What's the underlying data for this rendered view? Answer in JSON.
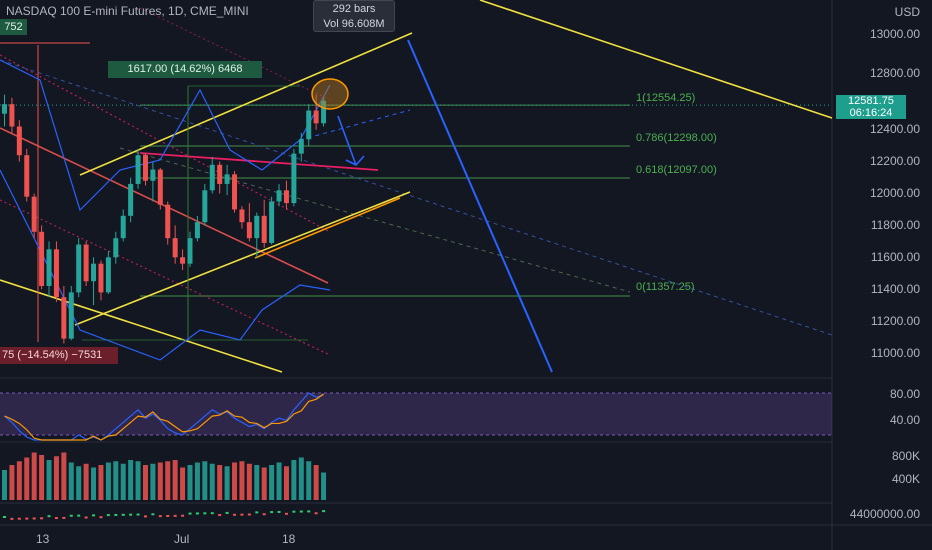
{
  "header": {
    "symbol_title": "NASDAQ 100 E-mini Futures, 1D, CME_MINI"
  },
  "tooltip": {
    "bars": "292 bars",
    "vol": "Vol 96.608M"
  },
  "price_axis": {
    "currency": "USD",
    "labels": [
      "13000.00",
      "12800.00",
      "12400.00",
      "12200.00",
      "12000.00",
      "11800.00",
      "11600.00",
      "11400.00",
      "11200.00",
      "11000.00"
    ],
    "current_price": "12581.75",
    "countdown": "06:16:24"
  },
  "indicator_axis": {
    "rsi_labels": [
      "80.00",
      "40.00"
    ],
    "volume_labels": [
      "800K",
      "400K"
    ],
    "obv_label": "44000000.00"
  },
  "time_axis": {
    "labels": [
      "13",
      "Jul",
      "18"
    ]
  },
  "annotations": {
    "measure_up": "1617.00 (14.62%) 6468",
    "measure_down": "75 (−14.54%) −7531",
    "partial_label": "752"
  },
  "fib_levels": [
    {
      "label": "1(12554.25)",
      "price": 12554.25
    },
    {
      "label": "0.786(12298.00)",
      "price": 12298.0
    },
    {
      "label": "0.618(12097.00)",
      "price": 12097.0
    },
    {
      "label": "0(11357.25)",
      "price": 11357.25
    }
  ],
  "colors": {
    "up": "#26a69a",
    "down": "#ef5350",
    "channel_yellow": "#f0e040",
    "trend_blue": "#2962ff",
    "bollinger": "#2962ff",
    "rsi_band": "#7e57c2",
    "fib": "#4caf50",
    "pink": "#e91e63"
  },
  "chart_data": {
    "type": "candlestick",
    "title": "NASDAQ 100 E-mini Futures, 1D, CME_MINI",
    "ylim": [
      10850,
      13250
    ],
    "ohlc": [
      [
        12500,
        12620,
        12420,
        12560
      ],
      [
        12560,
        12600,
        12380,
        12420
      ],
      [
        12420,
        12460,
        12200,
        12240
      ],
      [
        12240,
        12280,
        11950,
        11980
      ],
      [
        11980,
        12000,
        11720,
        11760
      ],
      [
        11760,
        11800,
        11400,
        11420
      ],
      [
        11420,
        11700,
        11350,
        11650
      ],
      [
        11650,
        11700,
        11320,
        11350
      ],
      [
        11350,
        11420,
        11060,
        11090
      ],
      [
        11090,
        11420,
        11080,
        11380
      ],
      [
        11380,
        11720,
        11350,
        11680
      ],
      [
        11680,
        11700,
        11420,
        11450
      ],
      [
        11450,
        11600,
        11300,
        11560
      ],
      [
        11560,
        11580,
        11330,
        11380
      ],
      [
        11380,
        11640,
        11370,
        11600
      ],
      [
        11600,
        11760,
        11560,
        11720
      ],
      [
        11720,
        11900,
        11700,
        11860
      ],
      [
        11860,
        12100,
        11820,
        12060
      ],
      [
        12060,
        12280,
        12030,
        12240
      ],
      [
        12240,
        12250,
        12050,
        12080
      ],
      [
        12080,
        12200,
        11950,
        12150
      ],
      [
        12150,
        12160,
        11900,
        11930
      ],
      [
        11930,
        11950,
        11680,
        11720
      ],
      [
        11720,
        11800,
        11560,
        11600
      ],
      [
        11600,
        11650,
        11520,
        11560
      ],
      [
        11560,
        11760,
        11540,
        11720
      ],
      [
        11720,
        11860,
        11700,
        11820
      ],
      [
        11820,
        12060,
        11800,
        12020
      ],
      [
        12020,
        12230,
        12000,
        12180
      ],
      [
        12180,
        12200,
        12000,
        12060
      ],
      [
        12060,
        12180,
        11990,
        12120
      ],
      [
        12120,
        12140,
        11880,
        11900
      ],
      [
        11900,
        11920,
        11780,
        11820
      ],
      [
        11820,
        11940,
        11700,
        11720
      ],
      [
        11720,
        11880,
        11600,
        11860
      ],
      [
        11860,
        11960,
        11660,
        11690
      ],
      [
        11690,
        11980,
        11680,
        11950
      ],
      [
        11950,
        12060,
        11920,
        12020
      ],
      [
        12020,
        12080,
        11900,
        11940
      ],
      [
        11940,
        12280,
        11920,
        12250
      ],
      [
        12250,
        12380,
        12200,
        12340
      ],
      [
        12340,
        12560,
        12300,
        12520
      ],
      [
        12520,
        12620,
        12400,
        12440
      ],
      [
        12440,
        12600,
        12420,
        12582
      ]
    ],
    "volume_k": [
      480,
      560,
      620,
      680,
      760,
      720,
      640,
      700,
      760,
      600,
      540,
      580,
      520,
      560,
      600,
      620,
      580,
      640,
      620,
      560,
      580,
      600,
      620,
      640,
      520,
      560,
      600,
      620,
      580,
      560,
      540,
      600,
      620,
      580,
      560,
      520,
      560,
      600,
      540,
      640,
      680,
      620,
      560,
      440
    ],
    "rsi": [
      58,
      52,
      44,
      38,
      30,
      26,
      34,
      30,
      22,
      30,
      40,
      36,
      38,
      34,
      40,
      46,
      52,
      58,
      64,
      56,
      60,
      54,
      46,
      42,
      40,
      46,
      52,
      58,
      64,
      60,
      62,
      56,
      52,
      48,
      50,
      46,
      52,
      56,
      54,
      64,
      72,
      80,
      76,
      78
    ]
  }
}
